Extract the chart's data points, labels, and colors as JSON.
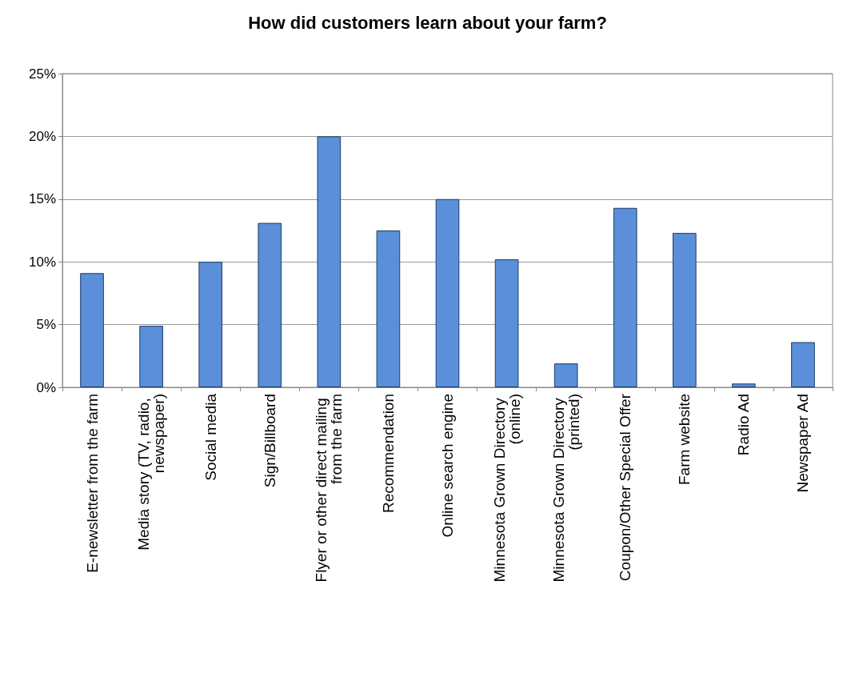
{
  "chart_data": {
    "type": "bar",
    "title": "How did customers learn about your farm?",
    "categories": [
      "E-newsletter from the farm",
      "Media story (TV, radio, newspaper)",
      "Social media",
      "Sign/Billboard",
      "Flyer or other direct mailing from the farm",
      "Recommendation",
      "Online search engine",
      "Minnesota Grown Directory (online)",
      "Minnesota Grown Directory (printed)",
      "Coupon/Other Special Offer",
      "Farm website",
      "Radio Ad",
      "Newspaper Ad"
    ],
    "values": [
      9.1,
      4.9,
      10,
      13.1,
      20,
      12.5,
      15,
      10.2,
      1.9,
      14.3,
      12.3,
      0.3,
      3.6
    ],
    "color": "#5b8fd9",
    "ylim": [
      0,
      25
    ],
    "yticks": [
      {
        "value": 0,
        "label": "0%"
      },
      {
        "value": 5,
        "label": "5%"
      },
      {
        "value": 10,
        "label": "10%"
      },
      {
        "value": 15,
        "label": "15%"
      },
      {
        "value": 20,
        "label": "20%"
      },
      {
        "value": 25,
        "label": "25%"
      }
    ],
    "grid": "y"
  }
}
